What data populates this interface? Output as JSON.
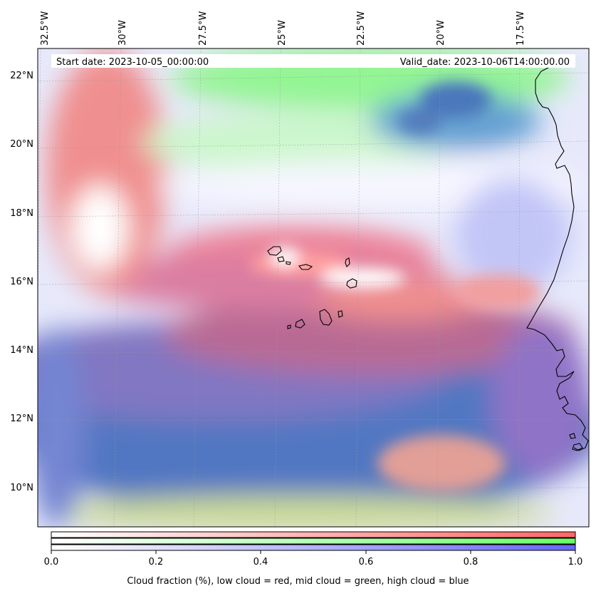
{
  "map": {
    "lon_labels": [
      "32.5°W",
      "30°W",
      "27.5°W",
      "25°W",
      "22.5°W",
      "20°W",
      "17.5°W"
    ],
    "lat_labels": [
      "22°N",
      "20°N",
      "18°N",
      "16°N",
      "14°N",
      "12°N",
      "10°N"
    ],
    "start_date": "Start date: 2023-10-05_00:00:00",
    "valid_date": "Valid_date: 2023-10-06T14:00:00.00"
  },
  "colorbar": {
    "ticks": [
      "0.0",
      "0.2",
      "0.4",
      "0.6",
      "0.8",
      "1.0"
    ],
    "title": "Cloud fraction (%), low cloud = red, mid cloud = green, high cloud = blue",
    "colors": {
      "low": "#ff6666",
      "mid": "#66ff66",
      "high": "#6666ff"
    }
  }
}
